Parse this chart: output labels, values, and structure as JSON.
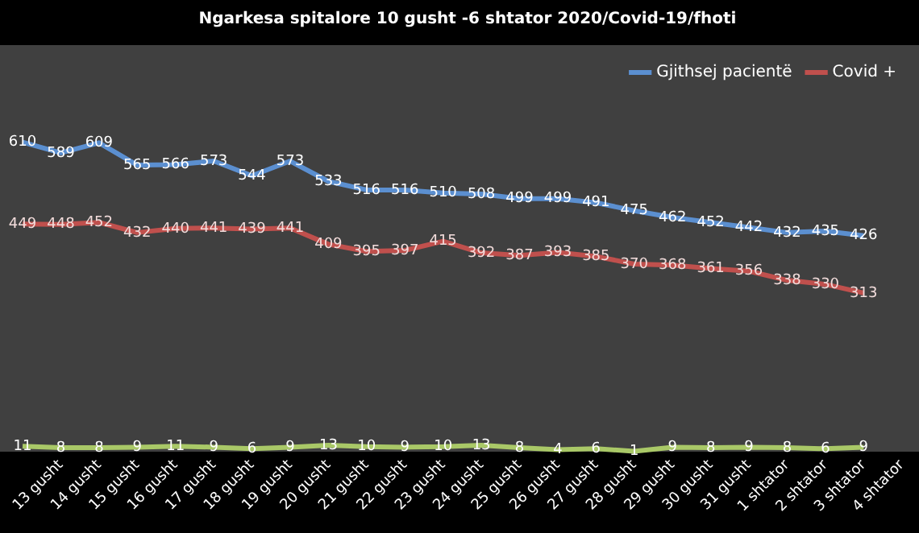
{
  "chart_data": {
    "type": "line",
    "title": "Ngarkesa spitalore 10 gusht -6 shtator 2020/Covid-19/fhoti",
    "categories": [
      null,
      "13 gusht",
      "14 gusht",
      "15 gusht",
      "16 gusht",
      "17 gusht",
      "18 gusht",
      "19 gusht",
      "20 gusht",
      "21 gusht",
      "22 gusht",
      "23 gusht",
      "24 gusht",
      "25 gusht",
      "26 gusht",
      "27 gusht",
      "28 gusht",
      "29 gusht",
      "30 gusht",
      "31 gusht",
      "1 shtator",
      "2 shtator",
      "3 shtator",
      "4 shtator"
    ],
    "series": [
      {
        "name": "Gjithsej pacientë",
        "color": "#5b8fd0",
        "values": [
          610,
          589,
          609,
          565,
          566,
          573,
          544,
          573,
          533,
          516,
          516,
          510,
          508,
          499,
          499,
          491,
          475,
          462,
          452,
          442,
          432,
          435,
          426,
          null
        ]
      },
      {
        "name": "Covid +",
        "color": "#c0504d",
        "values": [
          449,
          448,
          452,
          432,
          440,
          441,
          439,
          441,
          409,
          395,
          397,
          415,
          392,
          387,
          393,
          385,
          370,
          368,
          361,
          356,
          338,
          330,
          313,
          null
        ]
      },
      {
        "color": "#a9c867",
        "values": [
          11,
          8,
          8,
          9,
          11,
          9,
          6,
          9,
          13,
          10,
          9,
          10,
          13,
          8,
          4,
          6,
          1,
          9,
          8,
          9,
          8,
          6,
          9,
          null
        ]
      }
    ],
    "tick_labels": "x",
    "grid": false,
    "legend": "top right",
    "data_labels": true,
    "marker": "none"
  }
}
